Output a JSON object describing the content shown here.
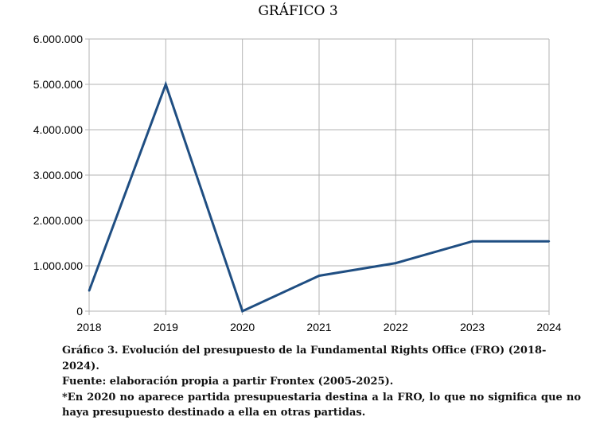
{
  "header": {
    "title": "GRÁFICO 3"
  },
  "chart_data": {
    "type": "line",
    "title": "",
    "xlabel": "",
    "ylabel": "",
    "x": [
      "2018",
      "2019",
      "2020",
      "2021",
      "2022",
      "2023",
      "2024"
    ],
    "series": [
      {
        "values": [
          450000,
          5000000,
          0,
          780000,
          1060000,
          1540000,
          1540000
        ],
        "color": "#1f4e82"
      }
    ],
    "ylim": [
      0,
      6000000
    ],
    "yticks": [
      0,
      1000000,
      2000000,
      3000000,
      4000000,
      5000000,
      6000000
    ],
    "ytick_labels": [
      "0",
      "1.000.000",
      "2.000.000",
      "3.000.000",
      "4.000.000",
      "5.000.000",
      "6.000.000"
    ],
    "grid": true,
    "legend": "none"
  },
  "caption": {
    "line1": "Gráfico 3. Evolución del presupuesto de la Fundamental Rights Office (FRO) (2018-2024).",
    "line2": "Fuente: elaboración propia a partir Frontex (2005-2025).",
    "note": "*En 2020 no aparece partida presupuestaria destina a la FRO, lo que no significa que no haya presupuesto destinado a ella en otras partidas."
  }
}
